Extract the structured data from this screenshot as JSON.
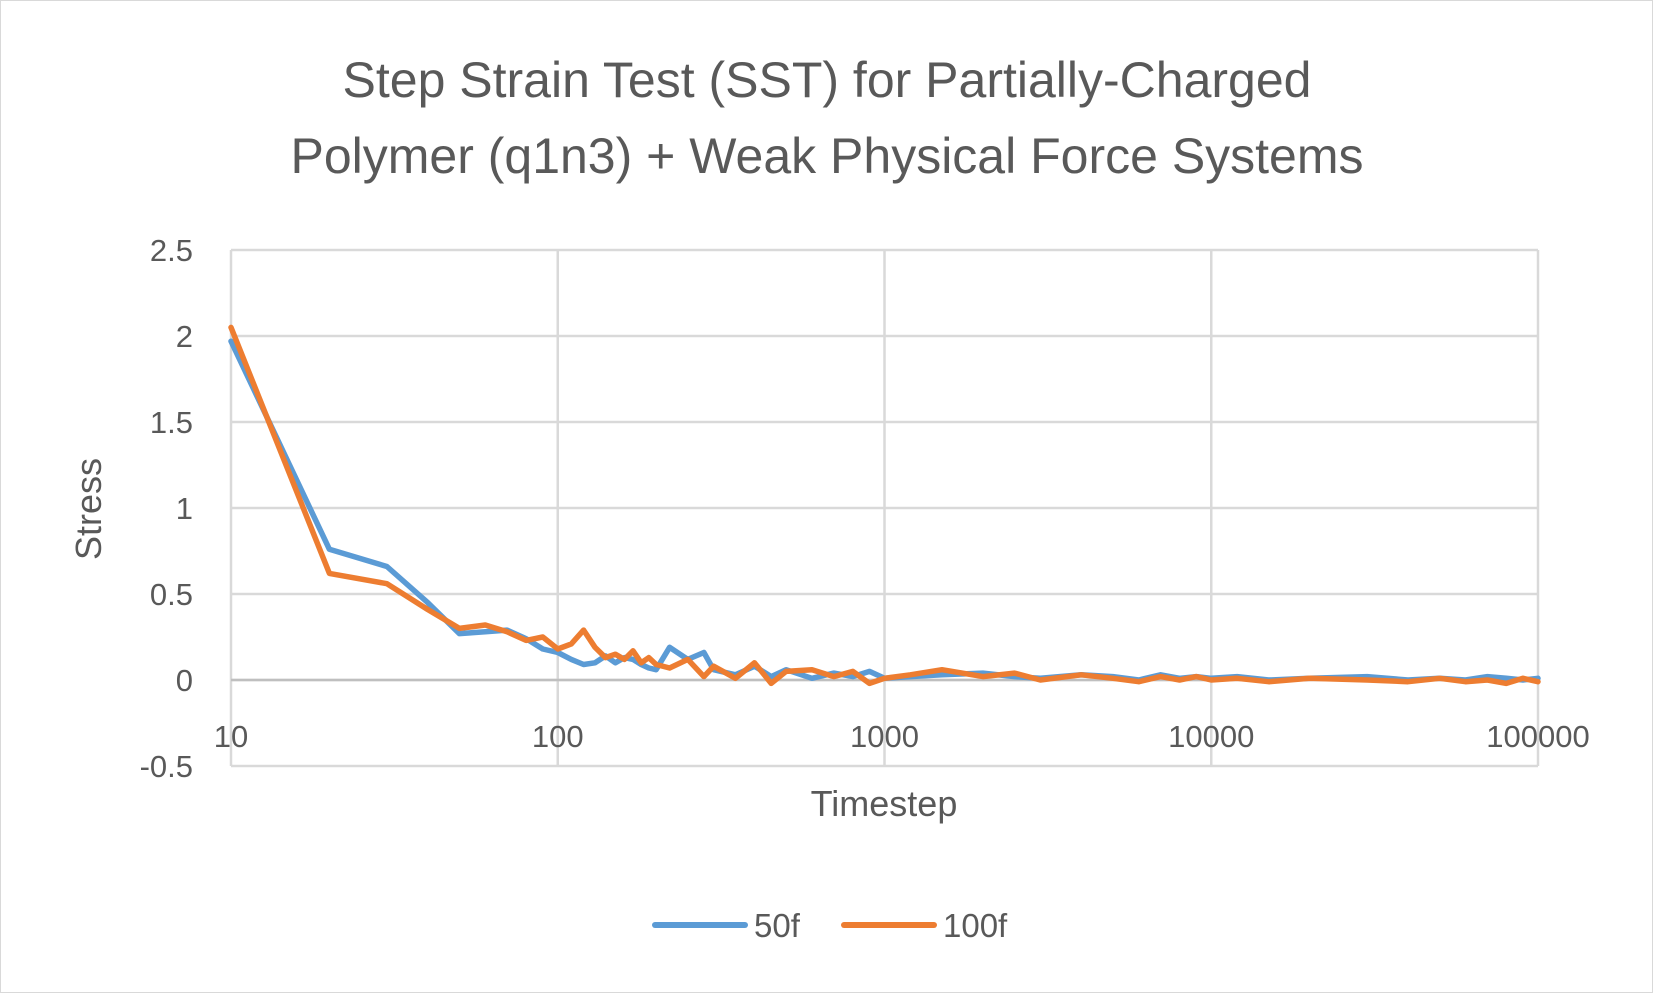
{
  "chart_data": {
    "type": "line",
    "title_lines": [
      "Step Strain Test (SST) for Partially-Charged",
      "Polymer (q1n3) + Weak Physical Force Systems"
    ],
    "xlabel": "Timestep",
    "ylabel": "Stress",
    "x_scale": "log",
    "xlim": [
      10,
      100000
    ],
    "ylim": [
      -0.5,
      2.5
    ],
    "x_ticks": [
      10,
      100,
      1000,
      10000,
      100000
    ],
    "x_tick_labels": [
      "10",
      "100",
      "1000",
      "10000",
      "100000"
    ],
    "y_ticks": [
      2.5,
      2,
      1.5,
      1,
      0.5,
      0,
      -0.5
    ],
    "y_tick_labels": [
      "2.5",
      "2",
      "1.5",
      "1",
      "0.5",
      "0",
      "-0.5"
    ],
    "grid": true,
    "legend_position": "bottom",
    "series": [
      {
        "name": "50f",
        "color": "#5b9bd5",
        "x": [
          10,
          20,
          30,
          40,
          50,
          60,
          70,
          80,
          90,
          100,
          110,
          120,
          130,
          140,
          150,
          160,
          170,
          180,
          190,
          200,
          220,
          250,
          280,
          300,
          350,
          400,
          450,
          500,
          600,
          700,
          800,
          900,
          1000,
          1200,
          1500,
          2000,
          2500,
          3000,
          4000,
          5000,
          6000,
          7000,
          8000,
          9000,
          10000,
          12000,
          15000,
          20000,
          30000,
          40000,
          50000,
          60000,
          70000,
          80000,
          90000,
          100000
        ],
        "values": [
          1.97,
          0.76,
          0.66,
          0.45,
          0.27,
          0.28,
          0.29,
          0.24,
          0.18,
          0.16,
          0.12,
          0.09,
          0.1,
          0.14,
          0.1,
          0.13,
          0.12,
          0.09,
          0.07,
          0.06,
          0.19,
          0.12,
          0.16,
          0.06,
          0.03,
          0.08,
          0.02,
          0.06,
          0.01,
          0.04,
          0.02,
          0.05,
          0.01,
          0.02,
          0.03,
          0.04,
          0.02,
          0.01,
          0.03,
          0.02,
          0.0,
          0.03,
          0.01,
          0.02,
          0.01,
          0.02,
          0.0,
          0.01,
          0.02,
          0.0,
          0.01,
          0.0,
          0.02,
          0.01,
          0.0,
          0.01
        ]
      },
      {
        "name": "100f",
        "color": "#ed7d31",
        "x": [
          10,
          20,
          30,
          40,
          50,
          60,
          70,
          80,
          90,
          100,
          110,
          120,
          130,
          140,
          150,
          160,
          170,
          180,
          190,
          200,
          220,
          250,
          280,
          300,
          350,
          400,
          450,
          500,
          600,
          700,
          800,
          900,
          1000,
          1200,
          1500,
          2000,
          2500,
          3000,
          4000,
          5000,
          6000,
          7000,
          8000,
          9000,
          10000,
          12000,
          15000,
          20000,
          30000,
          40000,
          50000,
          60000,
          70000,
          80000,
          90000,
          100000
        ],
        "values": [
          2.05,
          0.62,
          0.56,
          0.41,
          0.3,
          0.32,
          0.28,
          0.23,
          0.25,
          0.18,
          0.21,
          0.29,
          0.19,
          0.13,
          0.15,
          0.12,
          0.17,
          0.1,
          0.13,
          0.09,
          0.07,
          0.12,
          0.02,
          0.08,
          0.01,
          0.1,
          -0.02,
          0.05,
          0.06,
          0.02,
          0.05,
          -0.02,
          0.01,
          0.03,
          0.06,
          0.02,
          0.04,
          0.0,
          0.03,
          0.01,
          -0.01,
          0.02,
          0.0,
          0.02,
          0.0,
          0.01,
          -0.01,
          0.01,
          0.0,
          -0.01,
          0.01,
          -0.01,
          0.0,
          -0.02,
          0.01,
          -0.01
        ]
      }
    ]
  }
}
